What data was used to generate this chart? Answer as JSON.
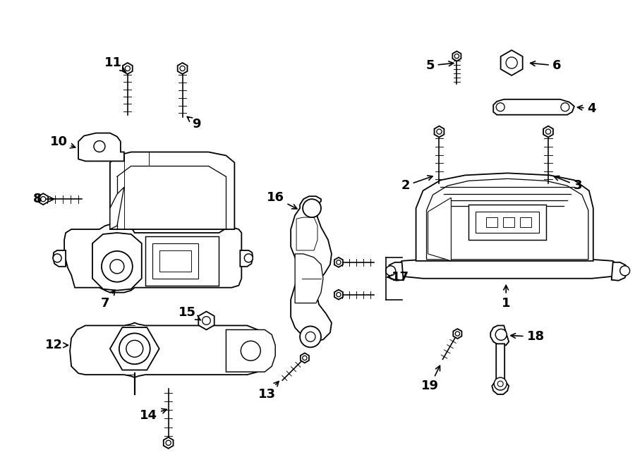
{
  "bg_color": "#ffffff",
  "line_color": "#000000",
  "fig_width": 9.0,
  "fig_height": 6.62,
  "dpi": 100
}
